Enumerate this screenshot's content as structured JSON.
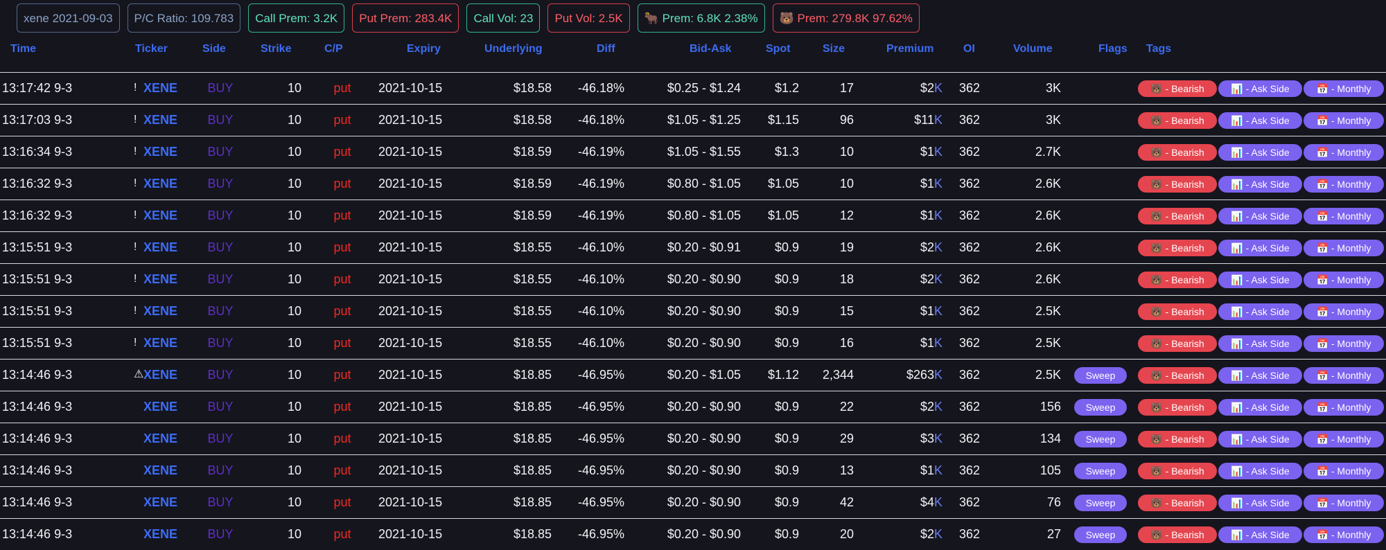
{
  "header": {
    "badges": [
      {
        "text": "xene 2021-09-03",
        "tone": "neutral"
      },
      {
        "text": "P/C Ratio: 109.783",
        "tone": "neutral"
      },
      {
        "text": "Call Prem: 3.2K",
        "tone": "call"
      },
      {
        "text": "Put Prem: 283.4K",
        "tone": "put"
      },
      {
        "text": "Call Vol: 23",
        "tone": "call"
      },
      {
        "text": "Put Vol: 2.5K",
        "tone": "put"
      },
      {
        "text": "🐂 Prem: 6.8K 2.38%",
        "tone": "call"
      },
      {
        "text": "🐻 Prem: 279.8K 97.62%",
        "tone": "put"
      }
    ]
  },
  "table": {
    "columns": [
      "Time",
      "Ticker",
      "Side",
      "Strike",
      "C/P",
      "Expiry",
      "Underlying",
      "Diff",
      "Bid-Ask",
      "Spot",
      "Size",
      "Premium",
      "OI",
      "Volume",
      "Flags",
      "Tags"
    ],
    "rows": [
      {
        "time": "13:17:42 9-3",
        "alert": "!",
        "ticker": "XENE",
        "side": "BUY",
        "strike": "10",
        "cp": "put",
        "expiry": "2021-10-15",
        "underlying": "$18.58",
        "diff": "-46.18%",
        "bid_ask": "$0.25 - $1.24",
        "spot": "$1.2",
        "size": "17",
        "premium": "$2",
        "premium_unit": "K",
        "oi": "362",
        "volume": "3K",
        "tags": [
          "🐻 - Bearish",
          "📊 - Ask Side",
          "📅 - Monthly"
        ]
      },
      {
        "time": "13:17:03 9-3",
        "alert": "!",
        "ticker": "XENE",
        "side": "BUY",
        "strike": "10",
        "cp": "put",
        "expiry": "2021-10-15",
        "underlying": "$18.58",
        "diff": "-46.18%",
        "bid_ask": "$1.05 - $1.25",
        "spot": "$1.15",
        "size": "96",
        "premium": "$11",
        "premium_unit": "K",
        "oi": "362",
        "volume": "3K",
        "tags": [
          "🐻 - Bearish",
          "📊 - Ask Side",
          "📅 - Monthly"
        ]
      },
      {
        "time": "13:16:34 9-3",
        "alert": "!",
        "ticker": "XENE",
        "side": "BUY",
        "strike": "10",
        "cp": "put",
        "expiry": "2021-10-15",
        "underlying": "$18.59",
        "diff": "-46.19%",
        "bid_ask": "$1.05 - $1.55",
        "spot": "$1.3",
        "size": "10",
        "premium": "$1",
        "premium_unit": "K",
        "oi": "362",
        "volume": "2.7K",
        "tags": [
          "🐻 - Bearish",
          "📊 - Ask Side",
          "📅 - Monthly"
        ]
      },
      {
        "time": "13:16:32 9-3",
        "alert": "!",
        "ticker": "XENE",
        "side": "BUY",
        "strike": "10",
        "cp": "put",
        "expiry": "2021-10-15",
        "underlying": "$18.59",
        "diff": "-46.19%",
        "bid_ask": "$0.80 - $1.05",
        "spot": "$1.05",
        "size": "10",
        "premium": "$1",
        "premium_unit": "K",
        "oi": "362",
        "volume": "2.6K",
        "tags": [
          "🐻 - Bearish",
          "📊 - Ask Side",
          "📅 - Monthly"
        ]
      },
      {
        "time": "13:16:32 9-3",
        "alert": "!",
        "ticker": "XENE",
        "side": "BUY",
        "strike": "10",
        "cp": "put",
        "expiry": "2021-10-15",
        "underlying": "$18.59",
        "diff": "-46.19%",
        "bid_ask": "$0.80 - $1.05",
        "spot": "$1.05",
        "size": "12",
        "premium": "$1",
        "premium_unit": "K",
        "oi": "362",
        "volume": "2.6K",
        "tags": [
          "🐻 - Bearish",
          "📊 - Ask Side",
          "📅 - Monthly"
        ]
      },
      {
        "time": "13:15:51 9-3",
        "alert": "!",
        "ticker": "XENE",
        "side": "BUY",
        "strike": "10",
        "cp": "put",
        "expiry": "2021-10-15",
        "underlying": "$18.55",
        "diff": "-46.10%",
        "bid_ask": "$0.20 - $0.91",
        "spot": "$0.9",
        "size": "19",
        "premium": "$2",
        "premium_unit": "K",
        "oi": "362",
        "volume": "2.6K",
        "tags": [
          "🐻 - Bearish",
          "📊 - Ask Side",
          "📅 - Monthly"
        ]
      },
      {
        "time": "13:15:51 9-3",
        "alert": "!",
        "ticker": "XENE",
        "side": "BUY",
        "strike": "10",
        "cp": "put",
        "expiry": "2021-10-15",
        "underlying": "$18.55",
        "diff": "-46.10%",
        "bid_ask": "$0.20 - $0.90",
        "spot": "$0.9",
        "size": "18",
        "premium": "$2",
        "premium_unit": "K",
        "oi": "362",
        "volume": "2.6K",
        "tags": [
          "🐻 - Bearish",
          "📊 - Ask Side",
          "📅 - Monthly"
        ]
      },
      {
        "time": "13:15:51 9-3",
        "alert": "!",
        "ticker": "XENE",
        "side": "BUY",
        "strike": "10",
        "cp": "put",
        "expiry": "2021-10-15",
        "underlying": "$18.55",
        "diff": "-46.10%",
        "bid_ask": "$0.20 - $0.90",
        "spot": "$0.9",
        "size": "15",
        "premium": "$1",
        "premium_unit": "K",
        "oi": "362",
        "volume": "2.5K",
        "tags": [
          "🐻 - Bearish",
          "📊 - Ask Side",
          "📅 - Monthly"
        ]
      },
      {
        "time": "13:15:51 9-3",
        "alert": "!",
        "ticker": "XENE",
        "side": "BUY",
        "strike": "10",
        "cp": "put",
        "expiry": "2021-10-15",
        "underlying": "$18.55",
        "diff": "-46.10%",
        "bid_ask": "$0.20 - $0.90",
        "spot": "$0.9",
        "size": "16",
        "premium": "$1",
        "premium_unit": "K",
        "oi": "362",
        "volume": "2.5K",
        "tags": [
          "🐻 - Bearish",
          "📊 - Ask Side",
          "📅 - Monthly"
        ]
      },
      {
        "time": "13:14:46 9-3",
        "alert": "⚠",
        "ticker": "XENE",
        "side": "BUY",
        "strike": "10",
        "cp": "put",
        "expiry": "2021-10-15",
        "underlying": "$18.85",
        "diff": "-46.95%",
        "bid_ask": "$0.20 - $1.05",
        "spot": "$1.12",
        "size": "2,344",
        "premium": "$263",
        "premium_unit": "K",
        "oi": "362",
        "volume": "2.5K",
        "flag": "Sweep",
        "tags": [
          "🐻 - Bearish",
          "📊 - Ask Side",
          "📅 - Monthly"
        ]
      },
      {
        "time": "13:14:46 9-3",
        "ticker": "XENE",
        "side": "BUY",
        "strike": "10",
        "cp": "put",
        "expiry": "2021-10-15",
        "underlying": "$18.85",
        "diff": "-46.95%",
        "bid_ask": "$0.20 - $0.90",
        "spot": "$0.9",
        "size": "22",
        "premium": "$2",
        "premium_unit": "K",
        "oi": "362",
        "volume": "156",
        "flag": "Sweep",
        "tags": [
          "🐻 - Bearish",
          "📊 - Ask Side",
          "📅 - Monthly"
        ]
      },
      {
        "time": "13:14:46 9-3",
        "ticker": "XENE",
        "side": "BUY",
        "strike": "10",
        "cp": "put",
        "expiry": "2021-10-15",
        "underlying": "$18.85",
        "diff": "-46.95%",
        "bid_ask": "$0.20 - $0.90",
        "spot": "$0.9",
        "size": "29",
        "premium": "$3",
        "premium_unit": "K",
        "oi": "362",
        "volume": "134",
        "flag": "Sweep",
        "tags": [
          "🐻 - Bearish",
          "📊 - Ask Side",
          "📅 - Monthly"
        ]
      },
      {
        "time": "13:14:46 9-3",
        "ticker": "XENE",
        "side": "BUY",
        "strike": "10",
        "cp": "put",
        "expiry": "2021-10-15",
        "underlying": "$18.85",
        "diff": "-46.95%",
        "bid_ask": "$0.20 - $0.90",
        "spot": "$0.9",
        "size": "13",
        "premium": "$1",
        "premium_unit": "K",
        "oi": "362",
        "volume": "105",
        "flag": "Sweep",
        "tags": [
          "🐻 - Bearish",
          "📊 - Ask Side",
          "📅 - Monthly"
        ]
      },
      {
        "time": "13:14:46 9-3",
        "ticker": "XENE",
        "side": "BUY",
        "strike": "10",
        "cp": "put",
        "expiry": "2021-10-15",
        "underlying": "$18.85",
        "diff": "-46.95%",
        "bid_ask": "$0.20 - $0.90",
        "spot": "$0.9",
        "size": "42",
        "premium": "$4",
        "premium_unit": "K",
        "oi": "362",
        "volume": "76",
        "flag": "Sweep",
        "tags": [
          "🐻 - Bearish",
          "📊 - Ask Side",
          "📅 - Monthly"
        ]
      },
      {
        "time": "13:14:46 9-3",
        "ticker": "XENE",
        "side": "BUY",
        "strike": "10",
        "cp": "put",
        "expiry": "2021-10-15",
        "underlying": "$18.85",
        "diff": "-46.95%",
        "bid_ask": "$0.20 - $0.90",
        "spot": "$0.9",
        "size": "20",
        "premium": "$2",
        "premium_unit": "K",
        "oi": "362",
        "volume": "27",
        "flag": "Sweep",
        "tags": [
          "🐻 - Bearish",
          "📊 - Ask Side",
          "📅 - Monthly"
        ]
      }
    ]
  }
}
